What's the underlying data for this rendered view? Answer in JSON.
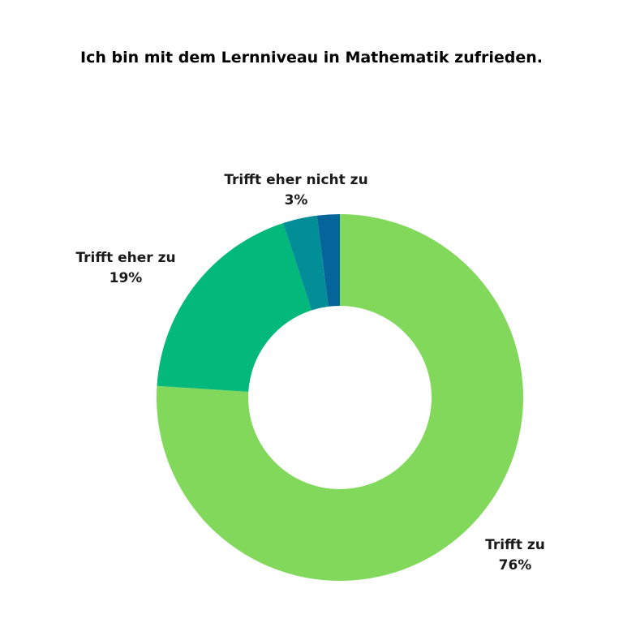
{
  "chart_data": {
    "type": "pie",
    "variant": "donut",
    "title": "Ich bin mit dem Lernniveau in Mathematik zufrieden.",
    "categories": [
      "Trifft zu",
      "Trifft eher zu",
      "Trifft eher nicht zu",
      ""
    ],
    "values": [
      76,
      19,
      3,
      2
    ],
    "value_labels": [
      "76%",
      "19%",
      "3%",
      ""
    ],
    "colors": [
      "#81D85B",
      "#02B87A",
      "#028E96",
      "#05649A"
    ],
    "legend": "none"
  }
}
